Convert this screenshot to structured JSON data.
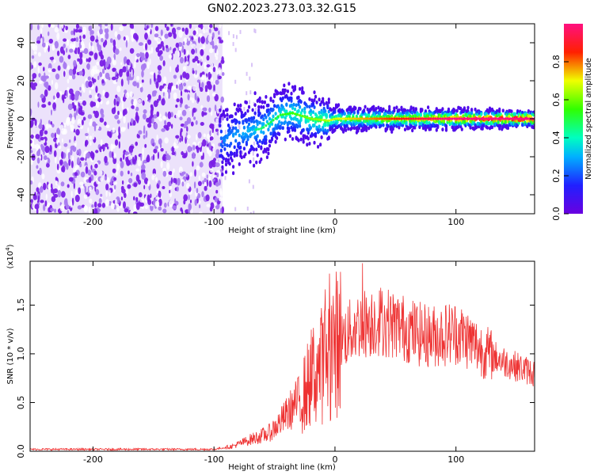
{
  "title": "GN02.2023.273.03.32.G15",
  "colors": {
    "spectrum_low": "#7b1fe0",
    "spectrum_pale": "#d9c4f7",
    "snr_line": "#ee3333"
  },
  "chart_data": [
    {
      "type": "heatmap",
      "xlabel": "Height of straight line (km)",
      "ylabel": "Frequency (Hz)",
      "xlim": [
        -252,
        165
      ],
      "ylim": [
        -50,
        50
      ],
      "xticks": [
        -200,
        -100,
        0,
        100
      ],
      "yticks": [
        -40,
        -20,
        0,
        20,
        40
      ],
      "colorbar": {
        "label": "Normalized spectral amplitude",
        "range": [
          0,
          1
        ],
        "ticks": [
          "0.0",
          "0.2",
          "0.4",
          "0.6",
          "0.8"
        ],
        "tick_values": [
          0,
          0.2,
          0.4,
          0.6,
          0.8
        ],
        "colormap": "rainbow (violet → blue → cyan → green → yellow → red → magenta)"
      },
      "ridge": {
        "description": "signal ridge",
        "x": [
          -95,
          -80,
          -60,
          -45,
          -35,
          -20,
          -5,
          0,
          20,
          50,
          100,
          165
        ],
        "y": [
          -12,
          -8,
          -5,
          2,
          3,
          0,
          -1,
          0,
          0,
          0,
          0,
          0
        ]
      },
      "noise_region_x": [
        -252,
        -95
      ]
    },
    {
      "type": "line",
      "xlabel": "Height of straight line (km)",
      "ylabel": "SNR (10 * v/v)",
      "y_multiplier": "(x10",
      "y_multiplier_exp": "4",
      "y_multiplier_close": ")",
      "xlim": [
        -252,
        165
      ],
      "ylim": [
        0,
        1.95
      ],
      "xticks": [
        -200,
        -100,
        0,
        100
      ],
      "yticks": [
        "0.0",
        "0.5",
        "1.0",
        "1.5"
      ],
      "ytick_values": [
        0,
        0.5,
        1.0,
        1.5
      ],
      "series": [
        {
          "x": [
            -252,
            -200,
            -100,
            -85,
            -70,
            -55,
            -45,
            -35,
            -25,
            -18,
            -10,
            0,
            10,
            20,
            35,
            50,
            60,
            70,
            80,
            90,
            100,
            110,
            120,
            130,
            140,
            150,
            165
          ],
          "y": [
            0.02,
            0.02,
            0.02,
            0.05,
            0.12,
            0.18,
            0.3,
            0.45,
            0.6,
            0.8,
            0.9,
            1.1,
            1.2,
            1.3,
            1.35,
            1.3,
            1.25,
            1.2,
            1.18,
            1.2,
            1.22,
            1.15,
            1.05,
            0.98,
            0.92,
            0.87,
            0.8
          ]
        }
      ]
    }
  ]
}
